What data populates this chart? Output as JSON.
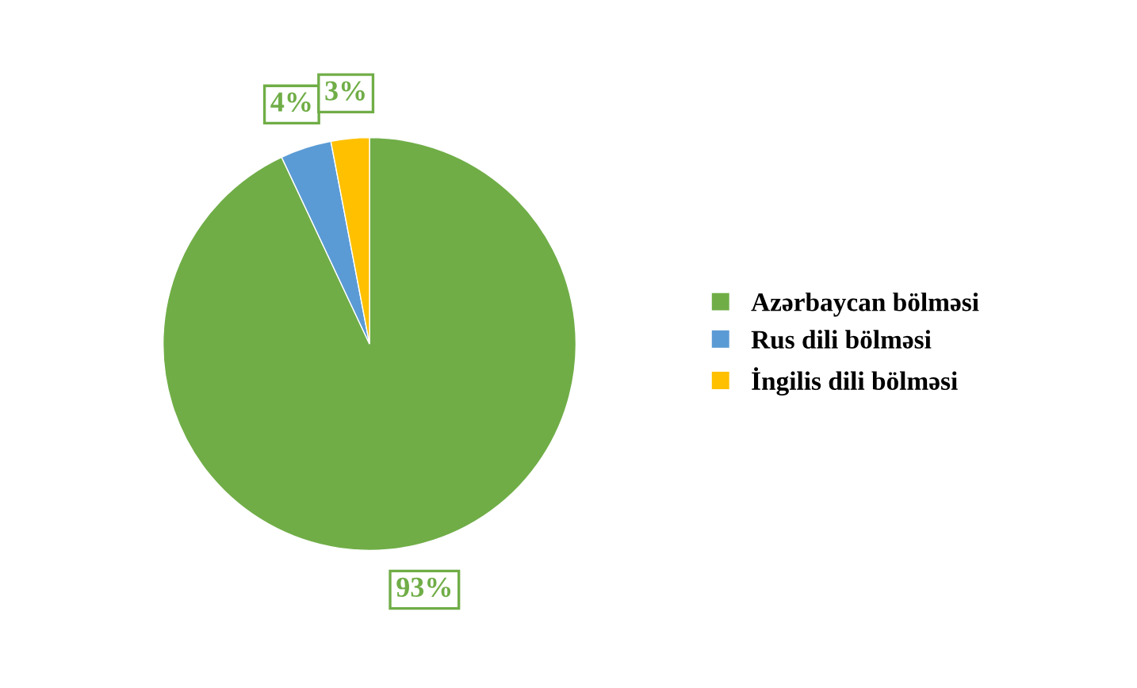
{
  "chart_data": {
    "type": "pie",
    "categories": [
      "Azərbaycan bölməsi",
      "Rus dili bölməsi",
      "İngilis dili bölməsi"
    ],
    "values": [
      93,
      4,
      3
    ],
    "colors": [
      "#70ad47",
      "#5b9bd5",
      "#ffc000"
    ],
    "value_labels": [
      "93%",
      "4%",
      "3%"
    ],
    "legend": "right"
  }
}
